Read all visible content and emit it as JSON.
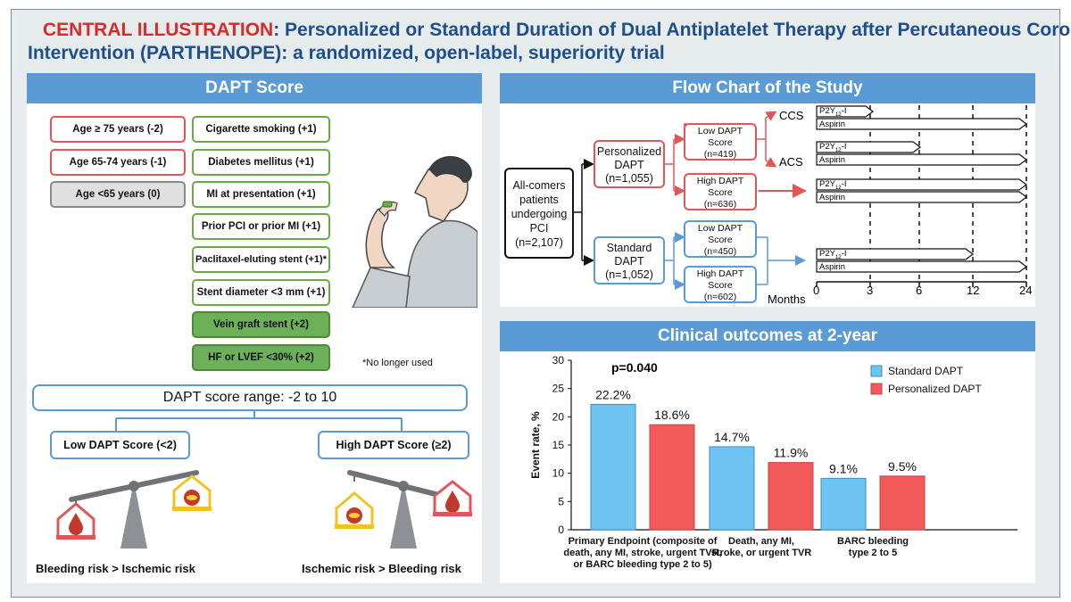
{
  "header": {
    "label": "CENTRAL ILLUSTRATION",
    "title_line1": ": Personalized or Standard Duration of Dual Antiplatelet Therapy after Percutaneous Coronary",
    "title_line2": "Intervention (PARTHENOPE): a randomized, open-label, superiority trial"
  },
  "colors": {
    "blue": "#5b9bd5",
    "red": "#e15759",
    "green": "#6aab46",
    "dark_blue": "#1f4e8c",
    "bar_blue": "#6fc3f0",
    "bar_red": "#f25a5a"
  },
  "dapt": {
    "title": "DAPT Score",
    "left_items": [
      {
        "label": "Age ≥ 75 years (-2)",
        "style": "red"
      },
      {
        "label": "Age 65-74 years (-1)",
        "style": "red"
      },
      {
        "label": "Age <65 years (0)",
        "style": "gray"
      }
    ],
    "right_items": [
      {
        "label": "Cigarette smoking (+1)",
        "style": "green"
      },
      {
        "label": "Diabetes mellitus (+1)",
        "style": "green"
      },
      {
        "label": "MI at presentation (+1)",
        "style": "green"
      },
      {
        "label": "Prior PCI or prior MI (+1)",
        "style": "green"
      },
      {
        "label": "Paclitaxel-eluting stent (+1)*",
        "style": "green"
      },
      {
        "label": "Stent diameter <3 mm (+1)",
        "style": "green"
      },
      {
        "label": "Vein graft stent (+2)",
        "style": "dark"
      },
      {
        "label": "HF or LVEF <30% (+2)",
        "style": "dark"
      }
    ],
    "footnote": "*No longer used",
    "range": "DAPT score range: -2 to 10",
    "low": "Low DAPT Score (<2)",
    "high": "High DAPT Score (≥2)",
    "left_caption": "Bleeding risk > Ischemic risk",
    "right_caption": "Ischemic risk > Bleeding risk"
  },
  "flow": {
    "title": "Flow Chart of the Study",
    "start": [
      "All-comers",
      "patients",
      "undergoing",
      "PCI",
      "(n=2,107)"
    ],
    "personalized": [
      "Personalized",
      "DAPT",
      "(n=1,055)"
    ],
    "standard": [
      "Standard",
      "DAPT",
      "(n=1,052)"
    ],
    "p_low": [
      "Low DAPT",
      "Score",
      "(n=419)"
    ],
    "p_high": [
      "High DAPT",
      "Score",
      "(n=636)"
    ],
    "s_low": [
      "Low DAPT",
      "Score",
      "(n=450)"
    ],
    "s_high": [
      "High DAPT",
      "Score",
      "(n=602)"
    ],
    "ccs": "CCS",
    "acs": "ACS",
    "p2y": "P2Y",
    "p2y_sub": "12",
    "p2y_suffix": "-I",
    "aspirin": "Aspirin",
    "months_label": "Months",
    "ticks": [
      "0",
      "3",
      "6",
      "12",
      "24"
    ]
  },
  "outcomes": {
    "title": "Clinical outcomes at 2-year",
    "p_value": "p=0.040"
  },
  "chart_data": {
    "type": "bar",
    "title": "Clinical outcomes at 2-year",
    "ylabel": "Event rate, %",
    "xlabel": "",
    "ylim": [
      0,
      30
    ],
    "yticks": [
      "0",
      "5",
      "10",
      "15",
      "20",
      "25",
      "30"
    ],
    "categories": [
      [
        "Primary Endpoint (composite of",
        "death, any MI, stroke, urgent TVR,",
        "or BARC bleeding type 2 to 5)"
      ],
      [
        "Death, any MI,",
        "stroke, or urgent TVR"
      ],
      [
        "BARC bleeding",
        "type 2 to 5"
      ]
    ],
    "series": [
      {
        "name": "Standard DAPT",
        "values": [
          22.2,
          14.7,
          9.1
        ],
        "labels": [
          "22.2%",
          "14.7%",
          "9.1%"
        ]
      },
      {
        "name": "Personalized DAPT",
        "values": [
          18.6,
          11.9,
          9.5
        ],
        "labels": [
          "18.6%",
          "11.9%",
          "9.5%"
        ]
      }
    ],
    "legend": "top-right"
  }
}
